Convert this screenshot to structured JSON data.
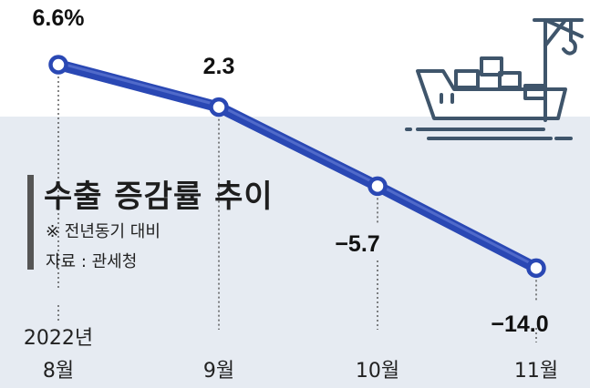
{
  "chart_data": {
    "type": "line",
    "title": "수출 증감률 추이",
    "subtitle": "※ 전년동기 대비",
    "source": "자료 : 관세청",
    "year_label": "2022년",
    "categories": [
      "8월",
      "9월",
      "10월",
      "11월"
    ],
    "values": [
      6.6,
      2.3,
      -5.7,
      -14.0
    ],
    "value_labels": [
      "6.6%",
      "2.3",
      "−5.7",
      "−14.0"
    ],
    "ylim": [
      -16,
      9
    ],
    "grid": false,
    "legend": "none",
    "colors": {
      "line": "#2a48b4",
      "line_light": "#6f86dd",
      "background_band": "#e6ebf2",
      "icon": "#3f556b"
    }
  },
  "illustration": {
    "icon": "cargo-ship-crane-icon"
  }
}
